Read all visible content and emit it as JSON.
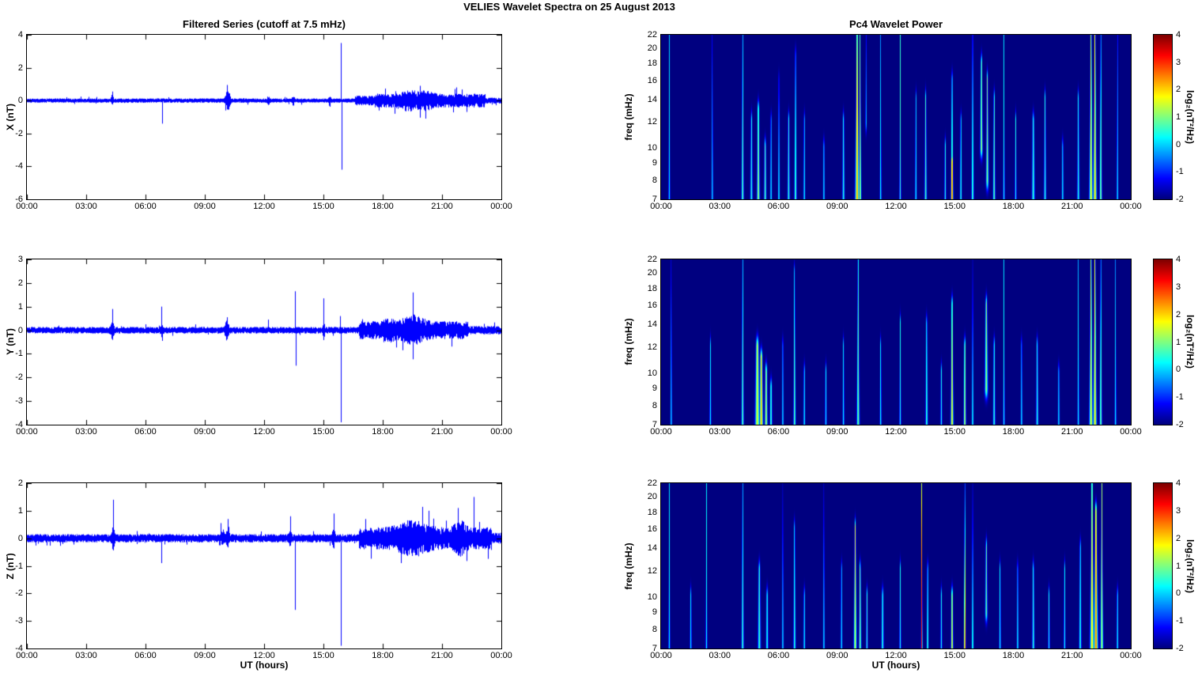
{
  "title": "VELIES Wavelet Spectra on 25 August   2013",
  "left_title": "Filtered Series (cutoff at 7.5 mHz)",
  "right_title": "Pc4 Wavelet Power",
  "series_color": "#0000FF",
  "x_axis": {
    "label": "UT (hours)",
    "range_hours": [
      0,
      24
    ],
    "ticks": [
      "00:00",
      "03:00",
      "06:00",
      "09:00",
      "12:00",
      "15:00",
      "18:00",
      "21:00",
      "00:00"
    ]
  },
  "freq_axis": {
    "label": "freq (mHz)",
    "scale": "log",
    "range_mhz": [
      7,
      22
    ],
    "ticks": [
      7,
      8,
      9,
      10,
      12,
      14,
      16,
      18,
      20,
      22
    ]
  },
  "colorbar": {
    "label": "log₂(nT²/Hz)",
    "min": -2,
    "max": 4,
    "ticks": [
      4,
      3,
      2,
      1,
      0,
      -1,
      -2
    ],
    "colormap": "jet"
  },
  "chart_data": [
    {
      "type": "line",
      "panel": "X filtered series",
      "ylabel": "X (nT)",
      "ylim": [
        -6,
        4
      ],
      "yticks": [
        -6,
        -4,
        -2,
        0,
        2,
        4
      ],
      "noise_envelope": [
        {
          "t0": 0,
          "t1": 16.6,
          "amp": 0.13
        },
        {
          "t0": 16.6,
          "t1": 17.6,
          "amp": 0.3
        },
        {
          "t0": 17.6,
          "t1": 23.2,
          "amp": 0.42
        },
        {
          "t0": 23.2,
          "t1": 24,
          "amp": 0.18
        }
      ],
      "noise_bursts": [
        {
          "t": 4.3,
          "w": 0.06,
          "amp": 0.25
        },
        {
          "t": 10.15,
          "w": 0.12,
          "amp": 0.55
        },
        {
          "t": 12.2,
          "w": 0.05,
          "amp": 0.25
        },
        {
          "t": 13.45,
          "w": 0.06,
          "amp": 0.3
        },
        {
          "t": 15.3,
          "w": 0.05,
          "amp": 0.3
        },
        {
          "t": 19.3,
          "w": 0.5,
          "amp": 0.25
        },
        {
          "t": 20.2,
          "w": 0.4,
          "amp": 0.2
        }
      ],
      "spikes": [
        {
          "t": 4.3,
          "v": 0.55
        },
        {
          "t": 6.85,
          "v": -1.4
        },
        {
          "t": 10.05,
          "v": -0.6
        },
        {
          "t": 10.1,
          "v": 0.95
        },
        {
          "t": 15.88,
          "v": 3.5
        },
        {
          "t": 15.9,
          "v": -4.2
        },
        {
          "t": 18.6,
          "v": -0.8
        },
        {
          "t": 19.9,
          "v": 0.9
        },
        {
          "t": 21.7,
          "v": 0.8
        }
      ]
    },
    {
      "type": "line",
      "panel": "Y filtered series",
      "ylabel": "Y (nT)",
      "ylim": [
        -4,
        3
      ],
      "yticks": [
        -4,
        -3,
        -2,
        -1,
        0,
        1,
        2,
        3
      ],
      "noise_envelope": [
        {
          "t0": 0,
          "t1": 16.8,
          "amp": 0.14
        },
        {
          "t0": 16.8,
          "t1": 22.3,
          "amp": 0.38
        },
        {
          "t0": 22.3,
          "t1": 24,
          "amp": 0.18
        }
      ],
      "noise_bursts": [
        {
          "t": 4.3,
          "w": 0.08,
          "amp": 0.3
        },
        {
          "t": 6.8,
          "w": 0.06,
          "amp": 0.2
        },
        {
          "t": 10.1,
          "w": 0.1,
          "amp": 0.3
        },
        {
          "t": 15.0,
          "w": 0.05,
          "amp": 0.3
        },
        {
          "t": 18.3,
          "w": 0.3,
          "amp": 0.15
        },
        {
          "t": 19.5,
          "w": 0.6,
          "amp": 0.3
        }
      ],
      "spikes": [
        {
          "t": 4.3,
          "v": 0.9
        },
        {
          "t": 6.8,
          "v": 1.0
        },
        {
          "t": 6.83,
          "v": -0.45
        },
        {
          "t": 10.1,
          "v": 0.55
        },
        {
          "t": 12.2,
          "v": 0.45
        },
        {
          "t": 13.55,
          "v": 1.65
        },
        {
          "t": 13.6,
          "v": -1.5
        },
        {
          "t": 15.0,
          "v": 1.35
        },
        {
          "t": 15.85,
          "v": 0.6
        },
        {
          "t": 15.88,
          "v": -3.9
        },
        {
          "t": 19.5,
          "v": 1.6
        }
      ]
    },
    {
      "type": "line",
      "panel": "Z filtered series",
      "ylabel": "Z (nT)",
      "ylim": [
        -4,
        2
      ],
      "yticks": [
        -4,
        -3,
        -2,
        -1,
        0,
        1,
        2
      ],
      "noise_envelope": [
        {
          "t0": 0,
          "t1": 16.8,
          "amp": 0.15
        },
        {
          "t0": 16.8,
          "t1": 23.5,
          "amp": 0.4
        },
        {
          "t0": 23.5,
          "t1": 24,
          "amp": 0.2
        }
      ],
      "noise_bursts": [
        {
          "t": 4.35,
          "w": 0.07,
          "amp": 0.3
        },
        {
          "t": 9.9,
          "w": 0.08,
          "amp": 0.2
        },
        {
          "t": 10.15,
          "w": 0.08,
          "amp": 0.25
        },
        {
          "t": 13.3,
          "w": 0.06,
          "amp": 0.25
        },
        {
          "t": 15.5,
          "w": 0.06,
          "amp": 0.3
        },
        {
          "t": 19.5,
          "w": 0.8,
          "amp": 0.3
        },
        {
          "t": 21.9,
          "w": 0.3,
          "amp": 0.3
        }
      ],
      "spikes": [
        {
          "t": 4.35,
          "v": 1.4
        },
        {
          "t": 6.8,
          "v": -0.9
        },
        {
          "t": 9.8,
          "v": 0.55
        },
        {
          "t": 10.15,
          "v": 0.7
        },
        {
          "t": 13.3,
          "v": 0.8
        },
        {
          "t": 13.55,
          "v": -2.6
        },
        {
          "t": 15.5,
          "v": 0.9
        },
        {
          "t": 15.88,
          "v": -3.9
        },
        {
          "t": 18.9,
          "v": -0.9
        },
        {
          "t": 20.3,
          "v": 1.0
        },
        {
          "t": 21.8,
          "v": 1.1
        },
        {
          "t": 22.6,
          "v": 1.5
        }
      ]
    },
    {
      "type": "heatmap",
      "panel": "X Pc4 wavelet power",
      "ylabel": "freq (mHz)",
      "ylim": [
        7,
        22
      ],
      "background_log2_power": -2,
      "streaks": [
        {
          "t": 0.4,
          "w": 0.03,
          "p": 0.2
        },
        {
          "t": 2.6,
          "w": 0.03,
          "p": 0.2
        },
        {
          "t": 4.15,
          "w": 0.04,
          "p": 0.9
        },
        {
          "t": 4.6,
          "w": 0.04,
          "p": 0.5,
          "f1": 12
        },
        {
          "t": 4.95,
          "w": 0.05,
          "p": 1.2,
          "f1": 13
        },
        {
          "t": 5.3,
          "w": 0.04,
          "p": 0.8,
          "f1": 10
        },
        {
          "t": 5.6,
          "w": 0.03,
          "p": 0.4,
          "f1": 12
        },
        {
          "t": 6.0,
          "w": 0.03,
          "p": 0.5,
          "f1": 16
        },
        {
          "t": 6.5,
          "w": 0.04,
          "p": 0.6,
          "f1": 12
        },
        {
          "t": 6.85,
          "w": 0.04,
          "p": 0.9,
          "f1": 19
        },
        {
          "t": 7.3,
          "w": 0.03,
          "p": 0.4,
          "f1": 12
        },
        {
          "t": 8.3,
          "w": 0.03,
          "p": 0.3,
          "f1": 10
        },
        {
          "t": 9.3,
          "w": 0.04,
          "p": 0.5,
          "f1": 12
        },
        {
          "t": 10.0,
          "w": 0.07,
          "p": 2.3
        },
        {
          "t": 10.15,
          "w": 0.04,
          "p": 1.5
        },
        {
          "t": 10.45,
          "w": 0.03,
          "p": 0.8,
          "f0": 12
        },
        {
          "t": 11.2,
          "w": 0.03,
          "p": 0.4
        },
        {
          "t": 12.2,
          "w": 0.03,
          "p": 0.6
        },
        {
          "t": 13.0,
          "w": 0.03,
          "p": 0.4,
          "f1": 14
        },
        {
          "t": 13.5,
          "w": 0.04,
          "p": 0.7,
          "f1": 14
        },
        {
          "t": 14.5,
          "w": 0.03,
          "p": 0.5,
          "f1": 10
        },
        {
          "t": 14.85,
          "w": 0.04,
          "p": 2.8,
          "f1": 9
        },
        {
          "t": 14.85,
          "w": 0.04,
          "p": 1.2,
          "f1": 16
        },
        {
          "t": 15.3,
          "w": 0.03,
          "p": 0.7,
          "f1": 12
        },
        {
          "t": 15.9,
          "w": 0.04,
          "p": 0.8
        },
        {
          "t": 16.35,
          "w": 0.06,
          "p": 1.3,
          "f0": 10,
          "f1": 18
        },
        {
          "t": 16.65,
          "w": 0.05,
          "p": 1.1,
          "f0": 8,
          "f1": 16
        },
        {
          "t": 17.0,
          "w": 0.04,
          "p": 0.9,
          "f1": 14
        },
        {
          "t": 17.5,
          "w": 0.03,
          "p": 0.4
        },
        {
          "t": 18.1,
          "w": 0.03,
          "p": 0.4,
          "f1": 12
        },
        {
          "t": 19.0,
          "w": 0.05,
          "p": 0.6,
          "f1": 12
        },
        {
          "t": 19.6,
          "w": 0.04,
          "p": 0.5,
          "f1": 14
        },
        {
          "t": 20.5,
          "w": 0.03,
          "p": 0.4,
          "f1": 10
        },
        {
          "t": 21.3,
          "w": 0.04,
          "p": 0.5,
          "f1": 14
        },
        {
          "t": 21.95,
          "w": 0.06,
          "p": 1.8
        },
        {
          "t": 22.15,
          "w": 0.06,
          "p": 2.1
        },
        {
          "t": 22.45,
          "w": 0.04,
          "p": 1.2
        },
        {
          "t": 23.3,
          "w": 0.03,
          "p": 0.3
        }
      ]
    },
    {
      "type": "heatmap",
      "panel": "Y Pc4 wavelet power",
      "ylabel": "freq (mHz)",
      "ylim": [
        7,
        22
      ],
      "background_log2_power": -2,
      "streaks": [
        {
          "t": 0.5,
          "w": 0.03,
          "p": 0.2
        },
        {
          "t": 2.5,
          "w": 0.03,
          "p": 0.25,
          "f1": 12
        },
        {
          "t": 4.15,
          "w": 0.04,
          "p": 0.9
        },
        {
          "t": 4.9,
          "w": 0.08,
          "p": 1.6,
          "f1": 12
        },
        {
          "t": 5.1,
          "w": 0.06,
          "p": 2.2,
          "f1": 11
        },
        {
          "t": 5.35,
          "w": 0.05,
          "p": 1.4,
          "f1": 10
        },
        {
          "t": 5.6,
          "w": 0.04,
          "p": 0.8,
          "f1": 9
        },
        {
          "t": 6.2,
          "w": 0.03,
          "p": 0.3,
          "f1": 12
        },
        {
          "t": 6.8,
          "w": 0.04,
          "p": 0.9,
          "f1": 20
        },
        {
          "t": 7.3,
          "w": 0.03,
          "p": 0.4,
          "f1": 10
        },
        {
          "t": 8.4,
          "w": 0.03,
          "p": 0.3,
          "f1": 10
        },
        {
          "t": 9.3,
          "w": 0.03,
          "p": 0.3,
          "f1": 12
        },
        {
          "t": 10.05,
          "w": 0.05,
          "p": 1.0
        },
        {
          "t": 11.2,
          "w": 0.03,
          "p": 0.4,
          "f1": 12
        },
        {
          "t": 12.2,
          "w": 0.03,
          "p": 0.4,
          "f1": 14
        },
        {
          "t": 13.55,
          "w": 0.04,
          "p": 0.7,
          "f1": 14
        },
        {
          "t": 14.3,
          "w": 0.03,
          "p": 0.4,
          "f1": 10
        },
        {
          "t": 14.85,
          "w": 0.05,
          "p": 1.8,
          "f1": 16
        },
        {
          "t": 15.5,
          "w": 0.04,
          "p": 1.5,
          "f1": 12
        },
        {
          "t": 15.9,
          "w": 0.03,
          "p": 0.6
        },
        {
          "t": 16.6,
          "w": 0.07,
          "p": 1.2,
          "f0": 9,
          "f1": 16
        },
        {
          "t": 17.0,
          "w": 0.04,
          "p": 0.6,
          "f1": 12
        },
        {
          "t": 17.5,
          "w": 0.03,
          "p": 0.4
        },
        {
          "t": 18.4,
          "w": 0.03,
          "p": 0.3,
          "f1": 12
        },
        {
          "t": 19.2,
          "w": 0.04,
          "p": 0.5,
          "f1": 12
        },
        {
          "t": 20.3,
          "w": 0.03,
          "p": 0.3,
          "f1": 10
        },
        {
          "t": 21.3,
          "w": 0.03,
          "p": 0.4
        },
        {
          "t": 21.95,
          "w": 0.06,
          "p": 1.7
        },
        {
          "t": 22.15,
          "w": 0.06,
          "p": 2.0
        },
        {
          "t": 22.45,
          "w": 0.04,
          "p": 1.1
        },
        {
          "t": 23.2,
          "w": 0.03,
          "p": 0.3
        }
      ]
    },
    {
      "type": "heatmap",
      "panel": "Z Pc4 wavelet power",
      "ylabel": "freq (mHz)",
      "ylim": [
        7,
        22
      ],
      "background_log2_power": -2,
      "streaks": [
        {
          "t": 0.4,
          "w": 0.03,
          "p": 0.3
        },
        {
          "t": 1.5,
          "w": 0.03,
          "p": 0.2,
          "f1": 10
        },
        {
          "t": 2.3,
          "w": 0.03,
          "p": 0.3
        },
        {
          "t": 4.15,
          "w": 0.04,
          "p": 0.7
        },
        {
          "t": 5.0,
          "w": 0.05,
          "p": 0.7,
          "f1": 12
        },
        {
          "t": 5.4,
          "w": 0.04,
          "p": 0.5,
          "f1": 10
        },
        {
          "t": 6.2,
          "w": 0.03,
          "p": 0.3
        },
        {
          "t": 6.8,
          "w": 0.04,
          "p": 0.6,
          "f1": 16
        },
        {
          "t": 7.3,
          "w": 0.03,
          "p": 0.4,
          "f1": 10
        },
        {
          "t": 8.3,
          "w": 0.03,
          "p": 0.3
        },
        {
          "t": 9.2,
          "w": 0.03,
          "p": 0.3,
          "f1": 12
        },
        {
          "t": 9.9,
          "w": 0.05,
          "p": 1.6,
          "f1": 16
        },
        {
          "t": 10.15,
          "w": 0.04,
          "p": 1.1,
          "f1": 12
        },
        {
          "t": 10.5,
          "w": 0.03,
          "p": 0.6,
          "f1": 10
        },
        {
          "t": 11.3,
          "w": 0.04,
          "p": 0.6,
          "f1": 10
        },
        {
          "t": 12.2,
          "w": 0.03,
          "p": 0.4,
          "f1": 12
        },
        {
          "t": 13.3,
          "w": 0.025,
          "p": 3.4
        },
        {
          "t": 13.6,
          "w": 0.03,
          "p": 0.9,
          "f1": 12
        },
        {
          "t": 14.3,
          "w": 0.03,
          "p": 0.4,
          "f1": 10
        },
        {
          "t": 14.85,
          "w": 0.04,
          "p": 1.8,
          "f1": 10
        },
        {
          "t": 15.5,
          "w": 0.03,
          "p": 3.0
        },
        {
          "t": 15.9,
          "w": 0.03,
          "p": 0.9
        },
        {
          "t": 16.6,
          "w": 0.05,
          "p": 0.9,
          "f0": 9,
          "f1": 14
        },
        {
          "t": 17.3,
          "w": 0.03,
          "p": 0.4,
          "f1": 12
        },
        {
          "t": 18.2,
          "w": 0.03,
          "p": 0.4,
          "f1": 12
        },
        {
          "t": 19.0,
          "w": 0.04,
          "p": 0.6,
          "f1": 12
        },
        {
          "t": 19.8,
          "w": 0.03,
          "p": 0.4,
          "f1": 10
        },
        {
          "t": 20.6,
          "w": 0.03,
          "p": 0.4,
          "f1": 12
        },
        {
          "t": 21.4,
          "w": 0.04,
          "p": 0.6,
          "f1": 14
        },
        {
          "t": 22.0,
          "w": 0.07,
          "p": 2.0
        },
        {
          "t": 22.2,
          "w": 0.07,
          "p": 2.6,
          "f1": 18
        },
        {
          "t": 22.5,
          "w": 0.05,
          "p": 1.4
        },
        {
          "t": 23.3,
          "w": 0.03,
          "p": 0.4,
          "f1": 10
        }
      ]
    }
  ]
}
